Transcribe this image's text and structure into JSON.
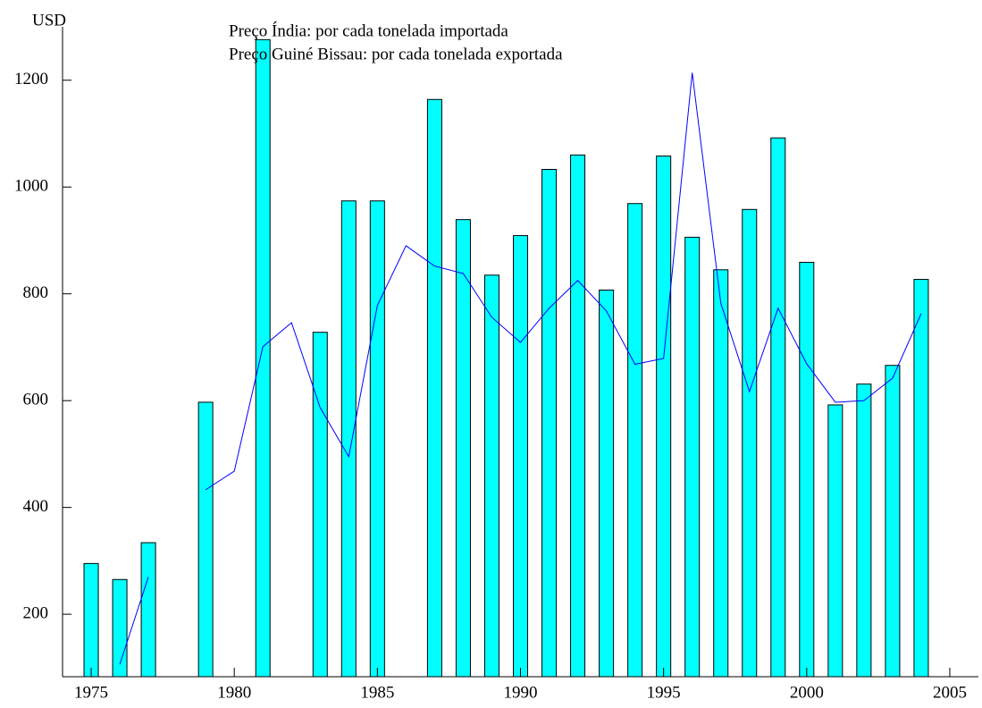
{
  "chart_data": {
    "type": "bar-line",
    "y_axis_label": "USD",
    "x": [
      1975,
      1976,
      1977,
      1978,
      1979,
      1980,
      1981,
      1982,
      1983,
      1984,
      1985,
      1986,
      1987,
      1988,
      1989,
      1990,
      1991,
      1992,
      1993,
      1994,
      1995,
      1996,
      1997,
      1998,
      1999,
      2000,
      2001,
      2002,
      2003,
      2004
    ],
    "series": [
      {
        "name": "Preço Índia: por cada tonelada importada",
        "type": "bar",
        "color": "#00ffff",
        "values": [
          295,
          265,
          334,
          null,
          597,
          null,
          1276,
          null,
          728,
          974,
          974,
          null,
          1164,
          939,
          835,
          909,
          1033,
          1060,
          807,
          969,
          1058,
          906,
          845,
          958,
          1092,
          859,
          592,
          631,
          666,
          827
        ]
      },
      {
        "name": "Preço  Guiné Bissau: por cada tonelada exportada",
        "type": "line",
        "color": "#0000ff",
        "values": [
          null,
          106,
          270,
          null,
          433,
          468,
          701,
          746,
          587,
          495,
          778,
          890,
          852,
          838,
          756,
          709,
          773,
          825,
          768,
          668,
          679,
          1214,
          782,
          617,
          773,
          669,
          597,
          600,
          642,
          763
        ]
      }
    ],
    "xlim": [
      1974,
      2006
    ],
    "xticks": [
      1975,
      1980,
      1985,
      1990,
      1995,
      2000,
      2005
    ],
    "ylim": [
      83,
      1300
    ],
    "yticks": [
      200,
      400,
      600,
      800,
      1000,
      1200
    ]
  }
}
